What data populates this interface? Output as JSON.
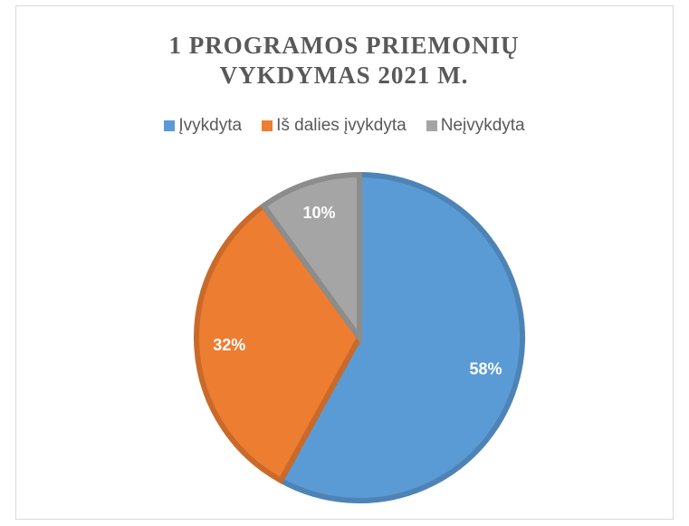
{
  "chart_data": {
    "type": "pie",
    "title": "1 PROGRAMOS PRIEMONIŲ VYKDYMAS 2021 M.",
    "categories": [
      "Įvykdyta",
      "Iš dalies įvykdyta",
      "Neįvykdyta"
    ],
    "values": [
      58,
      32,
      10
    ],
    "value_labels": [
      "58%",
      "32%",
      "10%"
    ],
    "colors": [
      "#5b9bd5",
      "#ed7d31",
      "#a5a5a5"
    ],
    "legend": "top"
  }
}
